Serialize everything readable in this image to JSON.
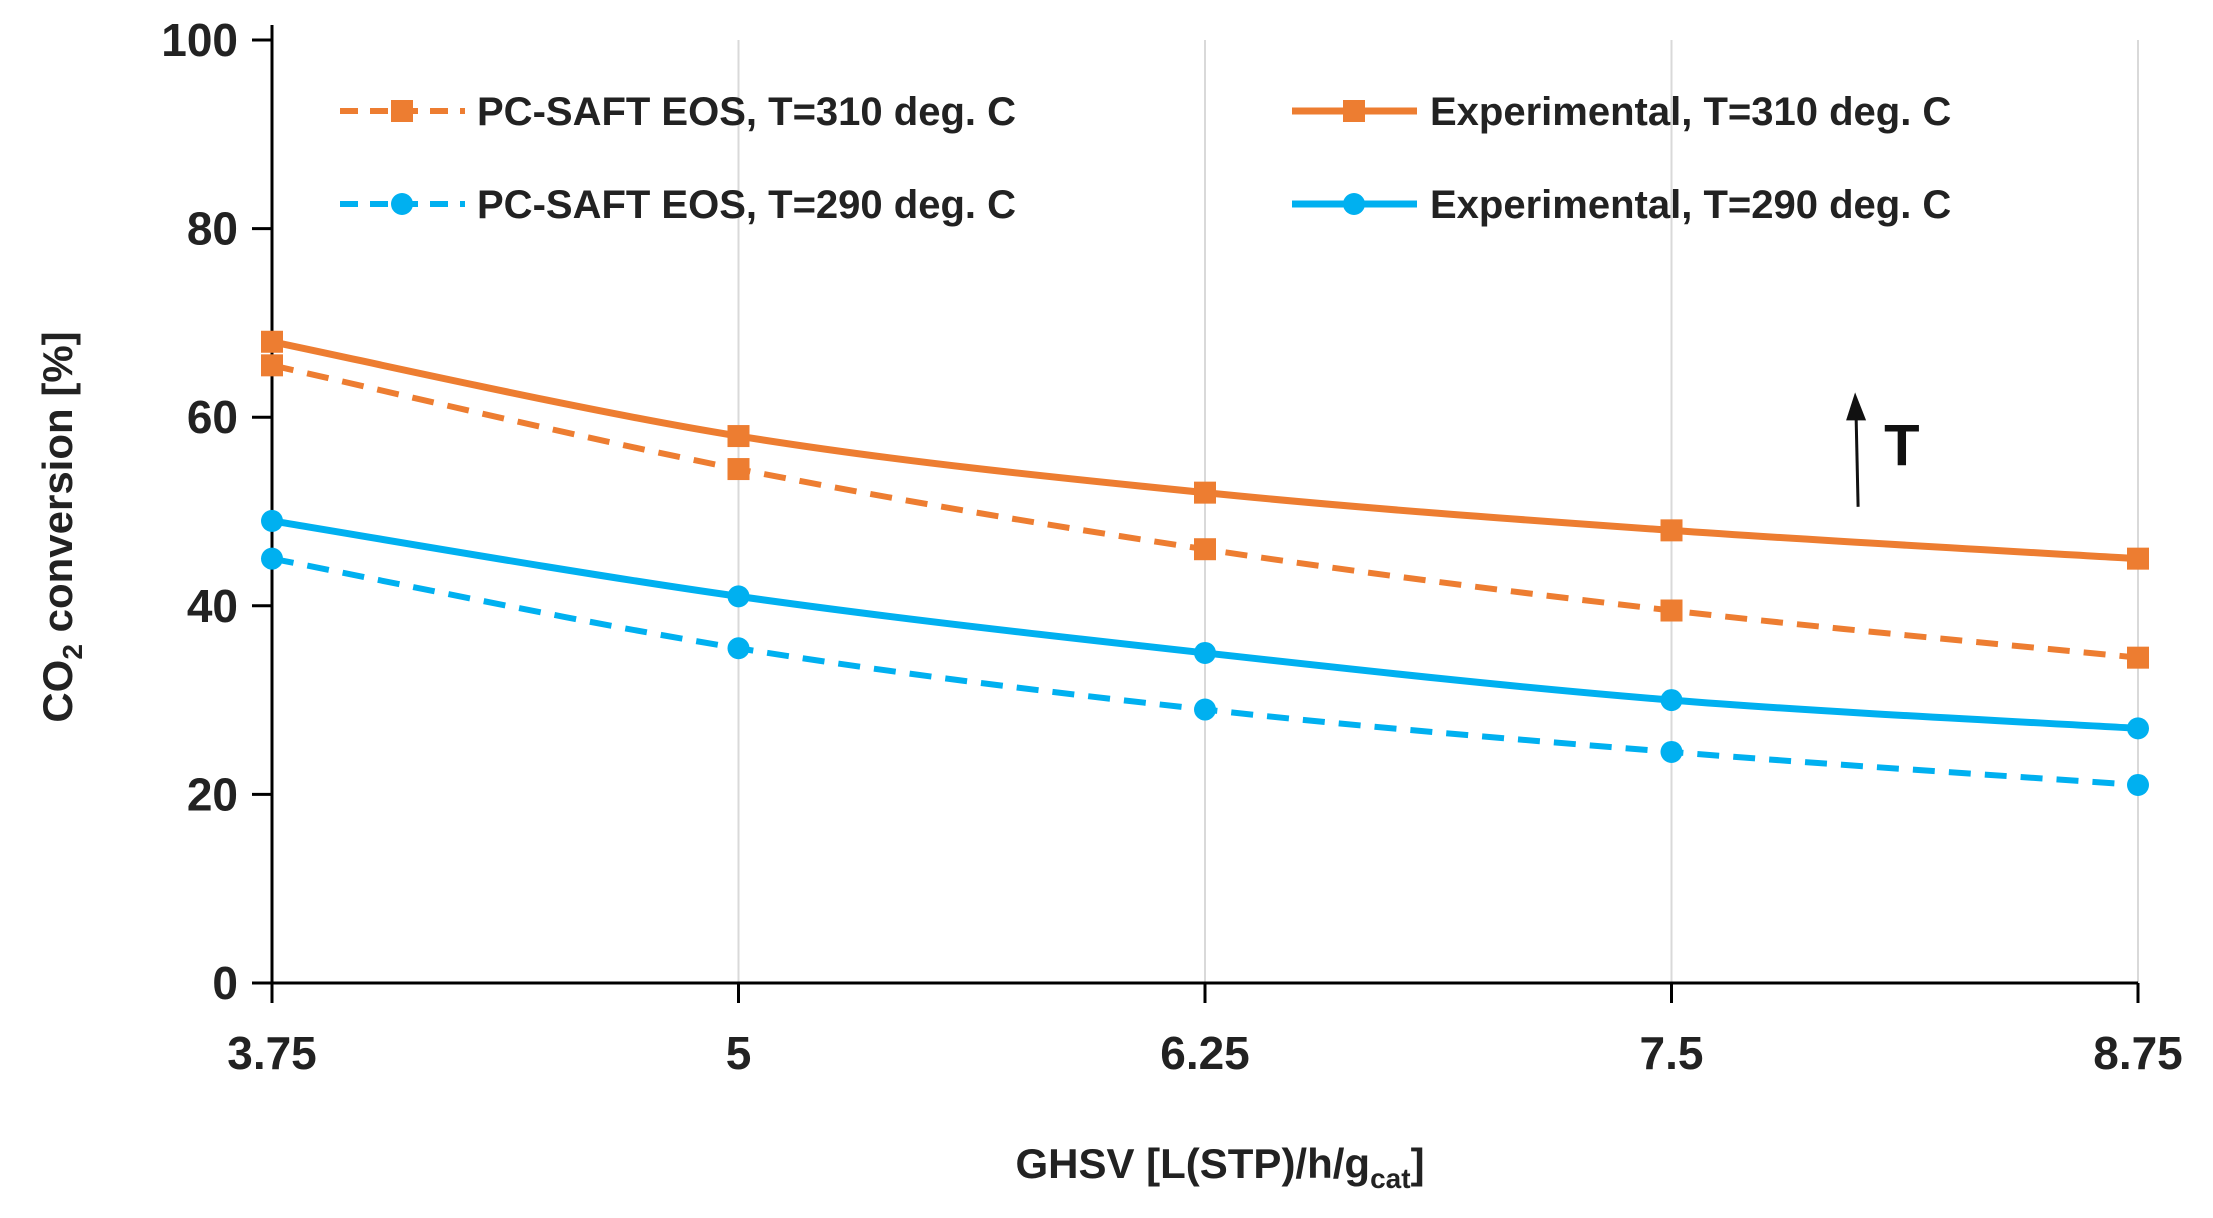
{
  "chart_data": {
    "type": "line",
    "title": "",
    "xlabel": {
      "main": "GHSV [L(STP)/h/g",
      "subscript": "cat",
      "suffix": "]"
    },
    "ylabel": {
      "prefix": "CO",
      "subscript": "2",
      "suffix": " conversion [%]"
    },
    "x": [
      3.75,
      5,
      6.25,
      7.5,
      8.75
    ],
    "x_tick_labels": [
      "3.75",
      "5",
      "6.25",
      "7.5",
      "8.75"
    ],
    "y_ticks": [
      0,
      20,
      40,
      60,
      80,
      100
    ],
    "y_tick_labels": [
      "0",
      "20",
      "40",
      "60",
      "80",
      "100"
    ],
    "xlim": [
      3.75,
      8.75
    ],
    "ylim": [
      0,
      100
    ],
    "grid": "vertical",
    "series": [
      {
        "name": "PC-SAFT EOS, T=310 deg. C",
        "color": "#ED7D31",
        "line": "dashed",
        "marker": "square",
        "values": [
          65.5,
          54.5,
          46,
          39.5,
          34.5
        ]
      },
      {
        "name": "Experimental, T=310 deg. C",
        "color": "#ED7D31",
        "line": "solid",
        "marker": "square",
        "values": [
          68,
          58,
          52,
          48,
          45
        ]
      },
      {
        "name": "PC-SAFT EOS, T=290 deg. C",
        "color": "#00B0F0",
        "line": "dashed",
        "marker": "circle",
        "values": [
          45,
          35.5,
          29,
          24.5,
          21
        ]
      },
      {
        "name": "Experimental, T=290 deg. C",
        "color": "#00B0F0",
        "line": "solid",
        "marker": "circle",
        "values": [
          49,
          41,
          35,
          30,
          27
        ]
      }
    ],
    "legend": "top, two columns inside plot",
    "annotations": [
      {
        "text": "T",
        "arrow": "up",
        "x": 8.0,
        "y_from": 50.5,
        "y_to": 62
      }
    ]
  }
}
